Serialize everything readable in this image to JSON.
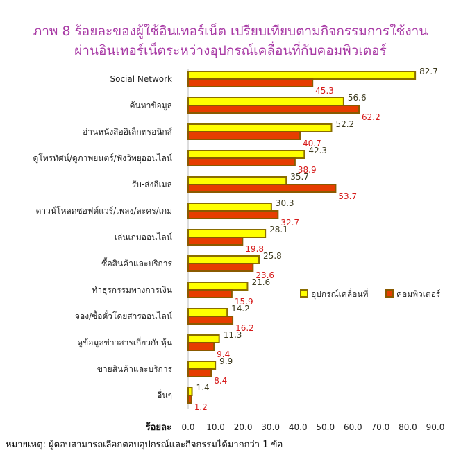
{
  "chart_data": {
    "type": "bar",
    "orientation": "horizontal",
    "title": "ภาพ 8 ร้อยละของผู้ใช้อินเทอร์เน็ต เปรียบเทียบตามกิจกรรมการใช้งาน",
    "subtitle": "ผ่านอินเทอร์เน็ตระหว่างอุปกรณ์เคลื่อนที่กับคอมพิวเตอร์",
    "xlabel": "ร้อยละ",
    "ylabel": "",
    "xlim": [
      0,
      90
    ],
    "xticks": [
      "0.0",
      "10.0",
      "20.0",
      "30.0",
      "40.0",
      "50.0",
      "60.0",
      "70.0",
      "80.0",
      "90.0"
    ],
    "grid": false,
    "legend_position": "right",
    "categories": [
      "Social Network",
      "ค้นหาข้อมูล",
      "อ่านหนังสืออิเล็กทรอนิกส์",
      "ดูโทรทัศน์/ดูภาพยนตร์/ฟังวิทยุออนไลน์",
      "รับ-ส่งอีเมล",
      "ดาวน์โหลดซอฟต์แวร์/เพลง/ละคร/เกม",
      "เล่นเกมออนไลน์",
      "ซื้อสินค้าและบริการ",
      "ทำธุรกรรมทางการเงิน",
      "จอง/ซื้อตั๋วโดยสารออนไลน์",
      "ดูข้อมูลข่าวสารเกี่ยวกับหุ้น",
      "ขายสินค้าและบริการ",
      "อื่นๆ"
    ],
    "series": [
      {
        "name": "อุปกรณ์เคลื่อนที่",
        "color": "#ffff00",
        "border": "#8a6d00",
        "values": [
          82.7,
          56.6,
          52.2,
          42.3,
          35.7,
          30.3,
          28.1,
          25.8,
          21.6,
          14.2,
          11.3,
          9.9,
          1.4
        ],
        "labels": [
          "82.7",
          "56.6",
          "52.2",
          "42.3",
          "35.7",
          "30.3",
          "28.1",
          "25.8",
          "21.6",
          "14.2",
          "11.3",
          "9.9",
          "1.4"
        ]
      },
      {
        "name": "คอมพิวเตอร์",
        "color": "#e63d00",
        "border": "#8a5a00",
        "values": [
          45.3,
          62.2,
          40.7,
          38.9,
          53.7,
          32.7,
          19.8,
          23.6,
          15.9,
          16.2,
          9.4,
          8.4,
          1.2
        ],
        "labels": [
          "45.3",
          "62.2",
          "40.7",
          "38.9",
          "53.7",
          "32.7",
          "19.8",
          "23.6",
          "15.9",
          "16.2",
          "9.4",
          "8.4",
          "1.2"
        ]
      }
    ]
  },
  "note": "หมายเหตุ: ผู้ตอบสามารถเลือกตอบอุปกรณ์และกิจกรรมได้มากกว่า 1 ข้อ"
}
